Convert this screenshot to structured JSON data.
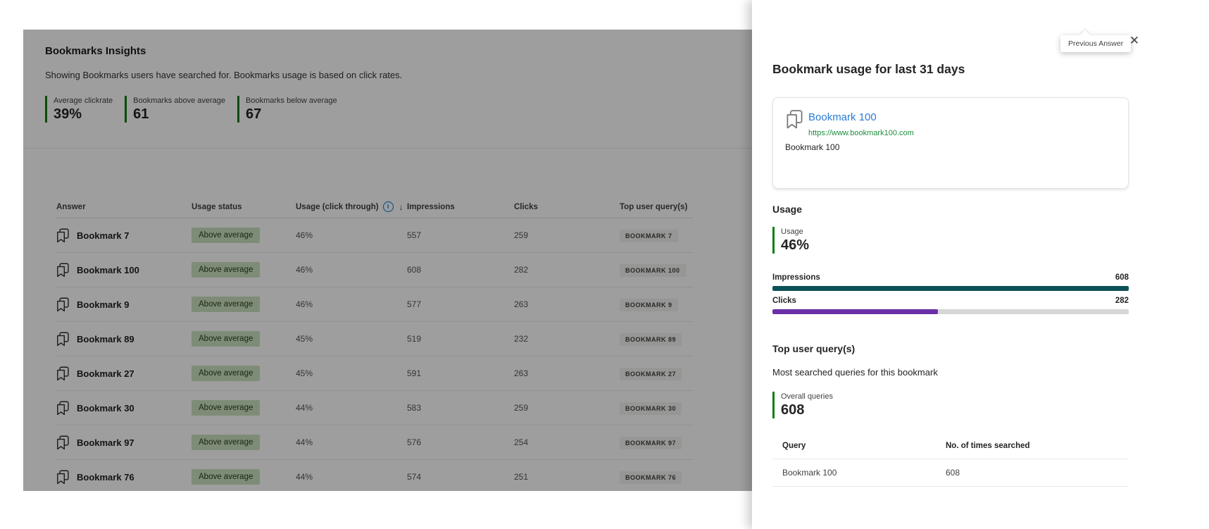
{
  "insights": {
    "title": "Bookmarks Insights",
    "subtitle": "Showing Bookmarks users have searched for. Bookmarks usage is based on click rates.",
    "stats": [
      {
        "label": "Average clickrate",
        "value": "39%"
      },
      {
        "label": "Bookmarks above average",
        "value": "61"
      },
      {
        "label": "Bookmarks below average",
        "value": "67"
      }
    ],
    "table": {
      "columns": [
        "Answer",
        "Usage status",
        "Usage (click through)",
        "Impressions",
        "Clicks",
        "Top user query(s)"
      ],
      "rows": [
        {
          "answer": "Bookmark 7",
          "status": "Above average",
          "usage": "46%",
          "impressions": "557",
          "clicks": "259",
          "top_query": "BOOKMARK 7"
        },
        {
          "answer": "Bookmark 100",
          "status": "Above average",
          "usage": "46%",
          "impressions": "608",
          "clicks": "282",
          "top_query": "BOOKMARK 100"
        },
        {
          "answer": "Bookmark 9",
          "status": "Above average",
          "usage": "46%",
          "impressions": "577",
          "clicks": "263",
          "top_query": "BOOKMARK 9"
        },
        {
          "answer": "Bookmark 89",
          "status": "Above average",
          "usage": "45%",
          "impressions": "519",
          "clicks": "232",
          "top_query": "BOOKMARK 89"
        },
        {
          "answer": "Bookmark 27",
          "status": "Above average",
          "usage": "45%",
          "impressions": "591",
          "clicks": "263",
          "top_query": "BOOKMARK 27"
        },
        {
          "answer": "Bookmark 30",
          "status": "Above average",
          "usage": "44%",
          "impressions": "583",
          "clicks": "259",
          "top_query": "BOOKMARK 30"
        },
        {
          "answer": "Bookmark 97",
          "status": "Above average",
          "usage": "44%",
          "impressions": "576",
          "clicks": "254",
          "top_query": "BOOKMARK 97"
        },
        {
          "answer": "Bookmark 76",
          "status": "Above average",
          "usage": "44%",
          "impressions": "574",
          "clicks": "251",
          "top_query": "BOOKMARK 76"
        }
      ]
    }
  },
  "panel": {
    "title": "Bookmark usage for last 31 days",
    "tooltip": "Previous Answer",
    "bookmark": {
      "name": "Bookmark 100",
      "url": "https://www.bookmark100.com",
      "description": "Bookmark 100"
    },
    "usage": {
      "heading": "Usage",
      "stat_label": "Usage",
      "stat_value": "46%",
      "metrics": [
        {
          "label": "Impressions",
          "value": "608",
          "pct": 100,
          "color": "#0D5257"
        },
        {
          "label": "Clicks",
          "value": "282",
          "pct": 46.4,
          "color": "#6B30A8"
        }
      ]
    },
    "queries": {
      "heading": "Top user query(s)",
      "subtitle": "Most searched queries for this bookmark",
      "stat_label": "Overall queries",
      "stat_value": "608",
      "columns": [
        "Query",
        "No. of times searched"
      ],
      "rows": [
        {
          "query": "Bookmark 100",
          "count": "608"
        }
      ]
    }
  },
  "icons": {
    "up": "↑",
    "down": "↓",
    "close": "✕",
    "sort_desc": "↓",
    "info": "i"
  },
  "colors": {
    "accent_green": "#107C10",
    "link_blue": "#2B7CD3",
    "url_green": "#1E8E3E",
    "impressions_bar": "#0D5257",
    "clicks_bar": "#6B30A8",
    "status_badge_bg": "#CBE3C0"
  }
}
